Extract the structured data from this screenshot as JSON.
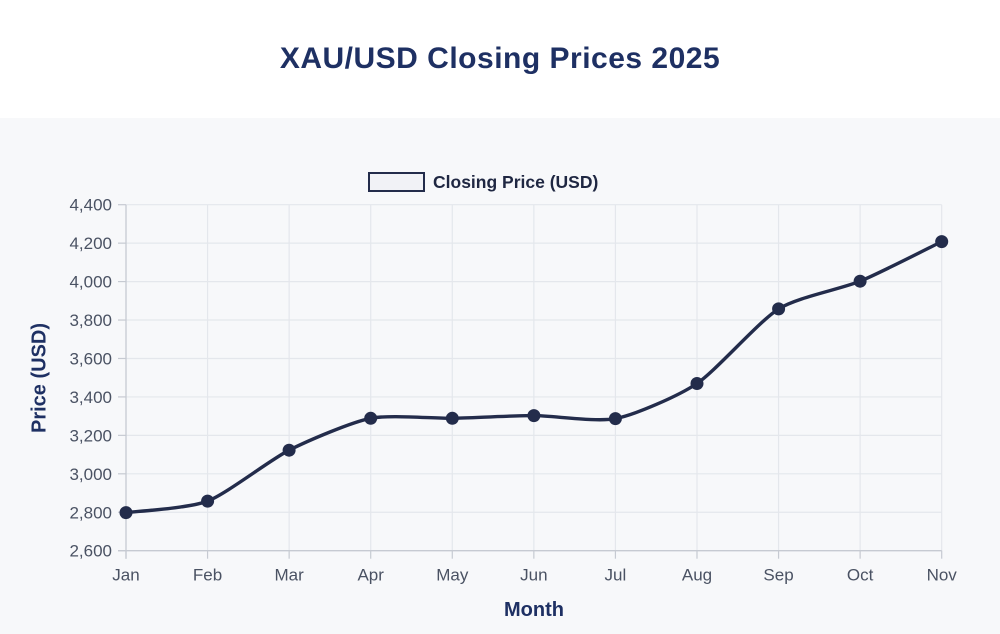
{
  "chart_data": {
    "type": "line",
    "title": "XAU/USD Closing Prices 2025",
    "legend": {
      "label": "Closing Price (USD)",
      "position": "top"
    },
    "xlabel": "Month",
    "ylabel": "Price (USD)",
    "categories": [
      "Jan",
      "Feb",
      "Mar",
      "Apr",
      "May",
      "Jun",
      "Jul",
      "Aug",
      "Sep",
      "Oct",
      "Nov"
    ],
    "series": [
      {
        "name": "Closing Price (USD)",
        "values": [
          2798,
          2858,
          3123,
          3289,
          3289,
          3303,
          3287,
          3470,
          3858,
          4002,
          4208
        ]
      }
    ],
    "ylim": [
      2600,
      4400
    ],
    "ytick_step": 200,
    "ytick_labels": [
      "2,600",
      "2,800",
      "3,000",
      "3,200",
      "3,400",
      "3,600",
      "3,800",
      "4,000",
      "4,200",
      "4,400"
    ],
    "grid": true,
    "colors": {
      "line": "#232c4b",
      "point": "#232c4b",
      "title": "#1e3063",
      "axis_title": "#1e3063",
      "tick_label": "#4a5263",
      "grid": "#e4e7ec",
      "axis_line": "#c6cad2",
      "panel_background": "#f7f8fa",
      "legend_text": "#1f2742",
      "legend_swatch_fill": "#f1f2f6",
      "legend_swatch_border": "#232c4b"
    }
  }
}
